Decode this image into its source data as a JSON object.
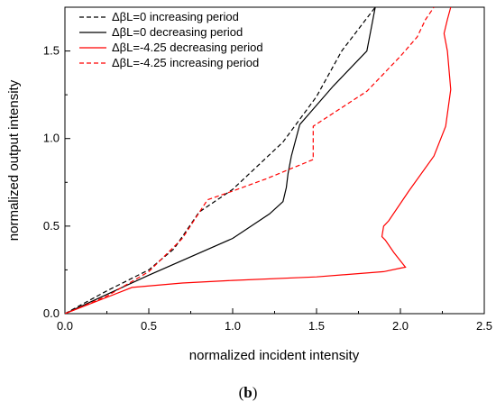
{
  "chart_data": {
    "type": "line",
    "xlabel": "normalized incident intensity",
    "ylabel": "normalized output intensity",
    "xlim": [
      0,
      2.5
    ],
    "ylim": [
      0,
      1.75
    ],
    "xticks": [
      "0.0",
      "0.5",
      "1.0",
      "1.5",
      "2.0",
      "2.5"
    ],
    "yticks": [
      "0.0",
      "0.5",
      "1.0",
      "1.5"
    ],
    "legend_position": "top-left",
    "caption": {
      "open": "(",
      "letter": "b",
      "close": ")"
    },
    "series": [
      {
        "name": "ΔβL=0 increasing period",
        "color": "#000000",
        "dash": "dashed",
        "x": [
          0,
          0.25,
          0.5,
          0.65,
          0.8,
          1.0,
          1.3,
          1.5,
          1.65,
          1.85
        ],
        "y": [
          0,
          0.13,
          0.25,
          0.37,
          0.58,
          0.71,
          0.98,
          1.24,
          1.5,
          1.75
        ]
      },
      {
        "name": "ΔβL=0 decreasing period",
        "color": "#000000",
        "dash": "solid",
        "x": [
          0,
          0.5,
          1.0,
          1.22,
          1.3,
          1.32,
          1.33,
          1.35,
          1.4,
          1.6,
          1.8,
          1.85
        ],
        "y": [
          0,
          0.22,
          0.43,
          0.57,
          0.64,
          0.72,
          0.8,
          0.9,
          1.08,
          1.3,
          1.5,
          1.75
        ]
      },
      {
        "name": "ΔβL=-4.25 decreasing period",
        "color": "#ff0000",
        "dash": "solid",
        "x": [
          0,
          0.4,
          0.7,
          1.0,
          1.5,
          1.9,
          2.0,
          2.03,
          1.96,
          1.91,
          1.89,
          1.9,
          1.93,
          2.05,
          2.2,
          2.27,
          2.3,
          2.28,
          2.26,
          2.28,
          2.3
        ],
        "y": [
          0,
          0.15,
          0.175,
          0.19,
          0.21,
          0.24,
          0.26,
          0.265,
          0.35,
          0.42,
          0.44,
          0.5,
          0.53,
          0.7,
          0.9,
          1.07,
          1.28,
          1.5,
          1.6,
          1.68,
          1.75
        ]
      },
      {
        "name": "ΔβL=-4.25 increasing period",
        "color": "#ff0000",
        "dash": "dashed",
        "x": [
          0,
          0.25,
          0.5,
          0.7,
          0.85,
          1.0,
          1.2,
          1.48,
          1.48,
          1.8,
          2.0,
          2.1,
          2.15,
          2.2
        ],
        "y": [
          0,
          0.1,
          0.24,
          0.43,
          0.65,
          0.7,
          0.77,
          0.88,
          1.07,
          1.27,
          1.47,
          1.58,
          1.68,
          1.75
        ]
      }
    ]
  }
}
